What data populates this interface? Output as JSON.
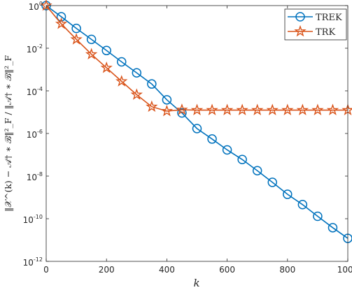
{
  "chart_data": {
    "type": "line",
    "xlabel": "k",
    "ylabel": "‖𝒳^(k) − 𝒜† ∗ ℬ‖²_F / ‖𝒜† ∗ ℬ‖²_F",
    "xlim": [
      0,
      1000
    ],
    "ylim": [
      1e-12,
      1
    ],
    "yscale": "log",
    "xticks": [
      0,
      200,
      400,
      600,
      800,
      1000
    ],
    "yticks_exponents": [
      0,
      -2,
      -4,
      -6,
      -8,
      -10,
      -12
    ],
    "legend_position": "top-right",
    "grid": false,
    "x": [
      0,
      50,
      100,
      150,
      200,
      250,
      300,
      350,
      400,
      450,
      500,
      550,
      600,
      650,
      700,
      750,
      800,
      850,
      900,
      950,
      1000
    ],
    "series": [
      {
        "name": "TREK",
        "color": "#0072BD",
        "marker": "circle",
        "values": [
          1.0,
          0.3,
          0.085,
          0.026,
          0.0078,
          0.0023,
          0.0007,
          0.00021,
          3.8e-05,
          9.2e-06,
          1.7e-06,
          5.5e-07,
          1.7e-07,
          6e-08,
          1.8e-08,
          5.1e-09,
          1.4e-09,
          4.6e-10,
          1.3e-10,
          3.8e-11,
          1.2e-11
        ]
      },
      {
        "name": "TRK",
        "color": "#D95319",
        "marker": "star",
        "values": [
          1.0,
          0.14,
          0.026,
          0.0052,
          0.0012,
          0.00028,
          6.6e-05,
          1.8e-05,
          1.12e-05,
          1.29e-05,
          1.25e-05,
          1.25e-05,
          1.25e-05,
          1.25e-05,
          1.25e-05,
          1.25e-05,
          1.25e-05,
          1.25e-05,
          1.25e-05,
          1.25e-05,
          1.25e-05
        ]
      }
    ]
  }
}
